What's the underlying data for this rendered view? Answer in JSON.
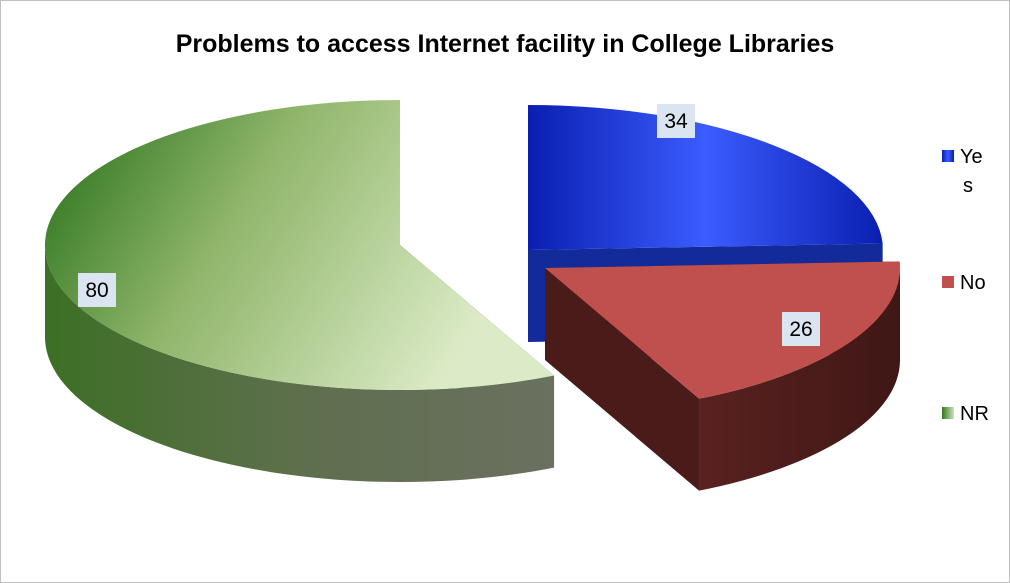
{
  "chart_data": {
    "type": "pie",
    "title": "Problems to access Internet facility in College Libraries",
    "categories": [
      "Yes",
      "No",
      "NR"
    ],
    "values": [
      34,
      26,
      80
    ],
    "data_labels": [
      "34",
      "26",
      "80"
    ],
    "legend": {
      "position": "right",
      "entries": [
        {
          "label_line1": "Ye",
          "label_line2": "s"
        },
        {
          "label_line1": "No",
          "label_line2": ""
        },
        {
          "label_line1": "NR",
          "label_line2": ""
        }
      ]
    },
    "colors": [
      "#1f3fd6",
      "#c0504d",
      "#6e9e3c"
    ],
    "style": "3d-exploded"
  }
}
